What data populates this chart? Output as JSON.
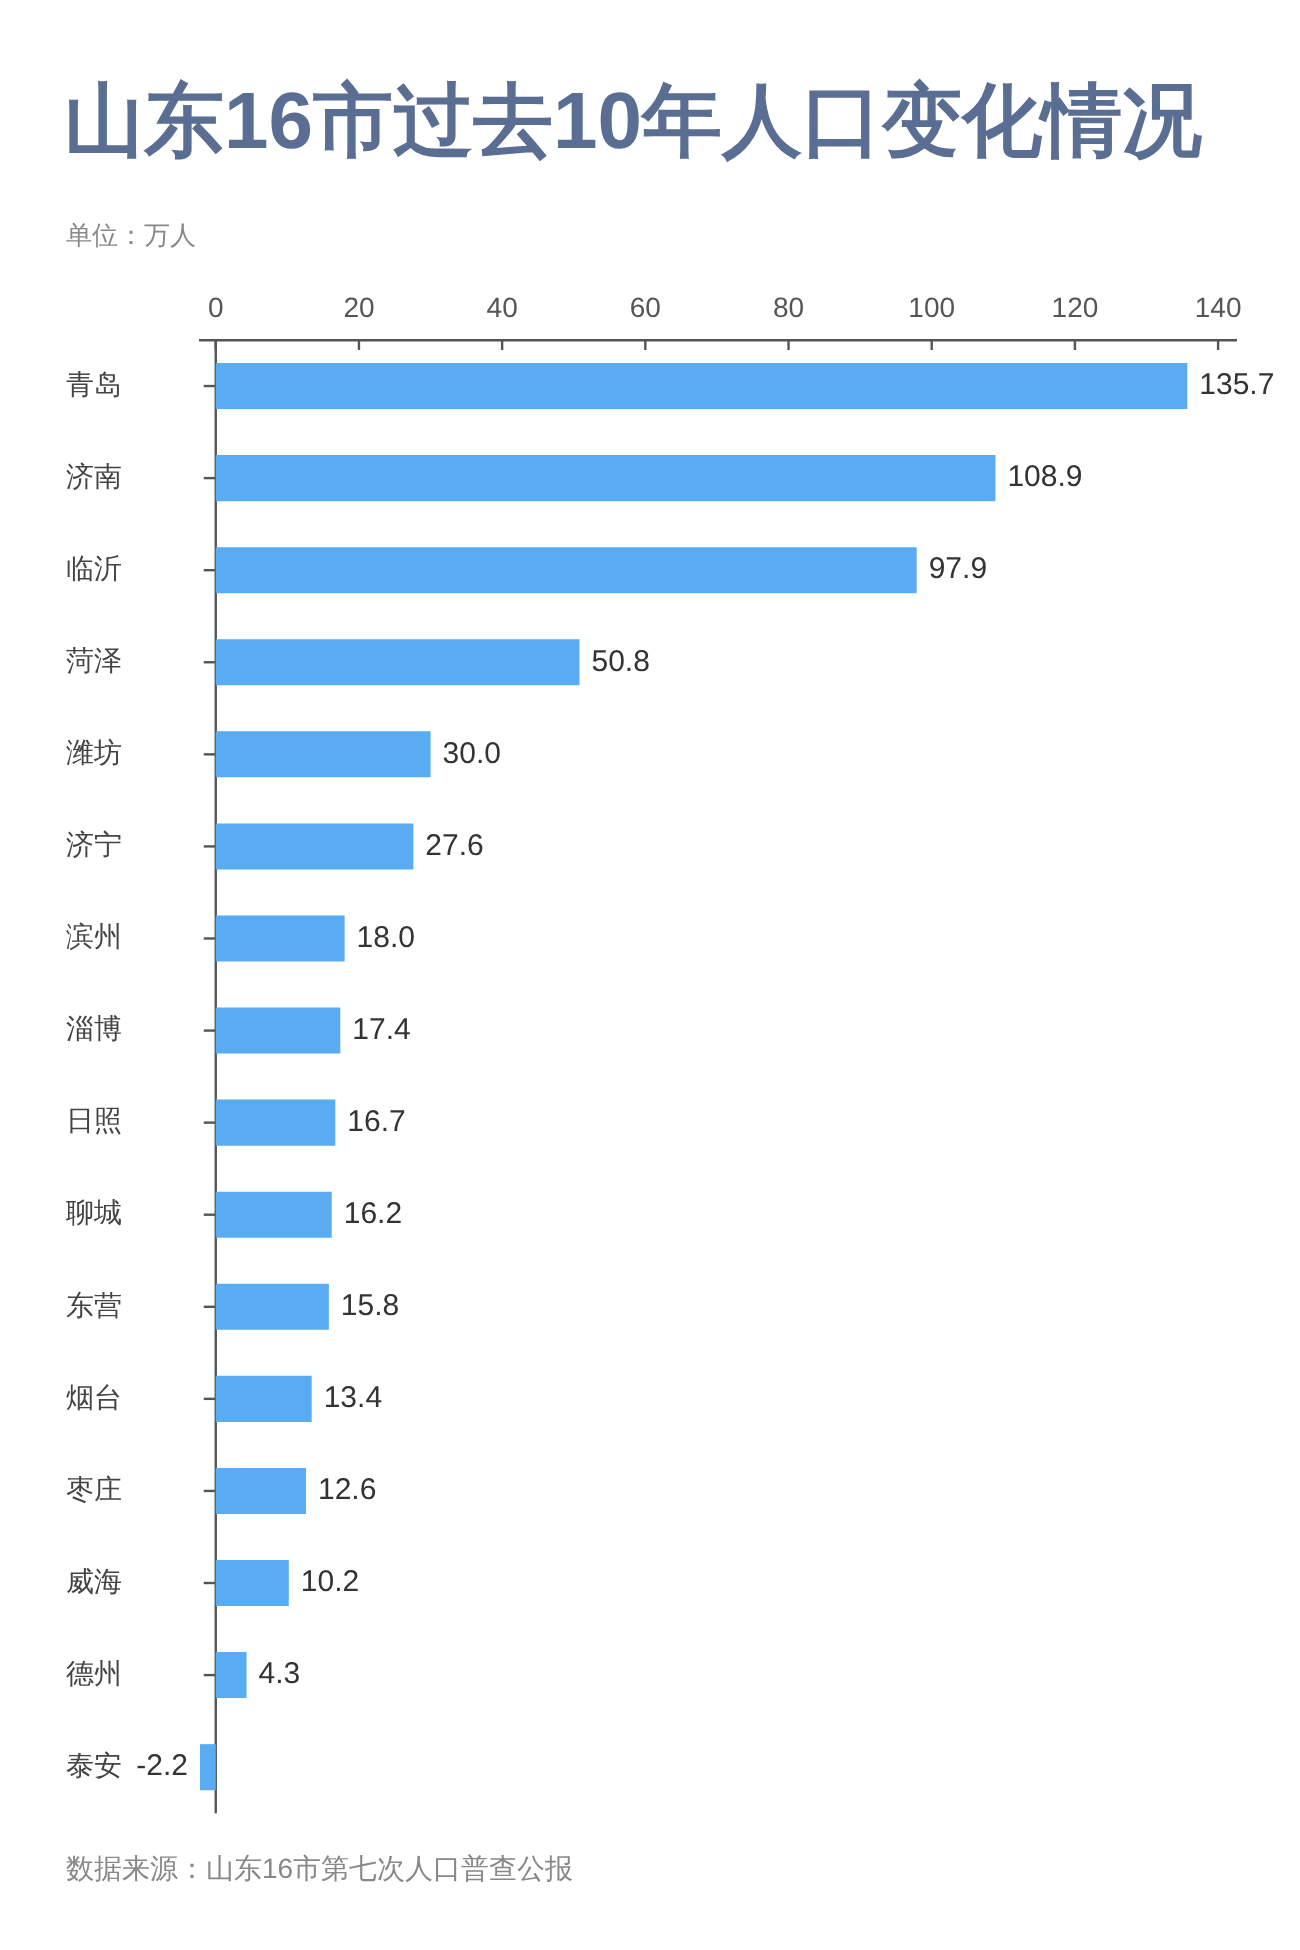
{
  "chart_data": {
    "type": "bar",
    "orientation": "horizontal",
    "title": "山东16市过去10年人口变化情况",
    "annotations": [
      "单位：万人",
      "数据来源：山东16市第七次人口普查公报"
    ],
    "categories": [
      "青岛",
      "济南",
      "临沂",
      "菏泽",
      "潍坊",
      "济宁",
      "滨州",
      "淄博",
      "日照",
      "聊城",
      "东营",
      "烟台",
      "枣庄",
      "威海",
      "德州",
      "泰安"
    ],
    "values": [
      135.7,
      108.9,
      97.9,
      50.8,
      30,
      27.6,
      18,
      17.4,
      16.7,
      16.2,
      15.8,
      13.4,
      12.6,
      10.2,
      4.3,
      -2.2
    ],
    "value_labels": [
      "135.7",
      "108.9",
      "97.9",
      "50.8",
      "30.0",
      "27.6",
      "18.0",
      "17.4",
      "16.7",
      "16.2",
      "15.8",
      "13.4",
      "12.6",
      "10.2",
      "4.3",
      "-2.2"
    ],
    "color": "#59acf1",
    "xlim": [
      -2.2,
      142.5
    ],
    "xticks": [
      0,
      20,
      40,
      60,
      80,
      100,
      120,
      140
    ]
  }
}
